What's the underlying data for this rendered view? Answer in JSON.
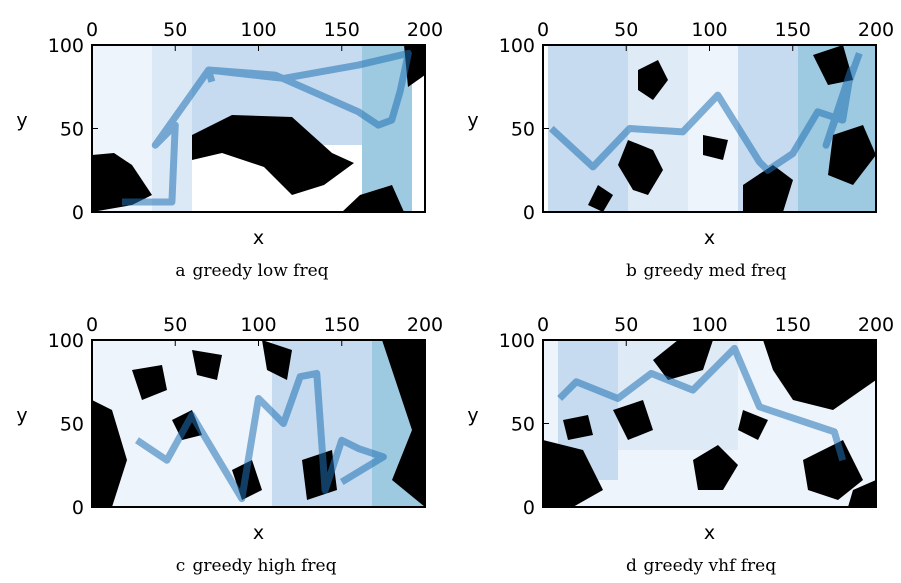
{
  "chart_data": [
    {
      "type": "line",
      "caption_letter": "a",
      "title": "greedy low freq",
      "xlabel": "x",
      "ylabel": "y",
      "xlim": [
        0,
        200
      ],
      "ylim": [
        0,
        100
      ],
      "xticks": [
        0,
        50,
        100,
        150,
        200
      ],
      "yticks": [
        0,
        50,
        100
      ],
      "series": [
        {
          "color": "#2171b5",
          "x": [
            18,
            48,
            50,
            38,
            70,
            110,
            160,
            172,
            180,
            185,
            190,
            160,
            115,
            70,
            72
          ],
          "y": [
            6,
            6,
            52,
            40,
            85,
            82,
            60,
            52,
            55,
            72,
            95,
            88,
            80,
            85,
            78
          ]
        }
      ]
    },
    {
      "type": "line",
      "caption_letter": "b",
      "title": "greedy med freq",
      "xlabel": "x",
      "ylabel": "y",
      "xlim": [
        0,
        200
      ],
      "ylim": [
        0,
        100
      ],
      "xticks": [
        0,
        50,
        100,
        150,
        200
      ],
      "yticks": [
        0,
        50,
        100
      ],
      "series": [
        {
          "color": "#2171b5",
          "x": [
            5,
            30,
            52,
            84,
            105,
            130,
            135,
            150,
            165,
            180,
            185,
            170,
            190
          ],
          "y": [
            50,
            27,
            50,
            48,
            70,
            30,
            25,
            35,
            60,
            55,
            85,
            40,
            95
          ]
        }
      ]
    },
    {
      "type": "line",
      "caption_letter": "c",
      "title": "greedy high freq",
      "xlabel": "x",
      "ylabel": "y",
      "xlim": [
        0,
        200
      ],
      "ylim": [
        0,
        100
      ],
      "xticks": [
        0,
        50,
        100,
        150,
        200
      ],
      "yticks": [
        0,
        50,
        100
      ],
      "series": [
        {
          "color": "#2171b5",
          "x": [
            27,
            45,
            60,
            90,
            100,
            115,
            125,
            135,
            140,
            150,
            160,
            175,
            150
          ],
          "y": [
            40,
            28,
            55,
            5,
            65,
            50,
            78,
            80,
            10,
            40,
            35,
            30,
            15
          ]
        }
      ]
    },
    {
      "type": "line",
      "caption_letter": "d",
      "title": "greedy vhf freq",
      "xlabel": "x",
      "ylabel": "y",
      "xlim": [
        0,
        200
      ],
      "ylim": [
        0,
        100
      ],
      "xticks": [
        0,
        50,
        100,
        150,
        200
      ],
      "yticks": [
        0,
        50,
        100
      ],
      "series": [
        {
          "color": "#2171b5",
          "x": [
            10,
            20,
            45,
            65,
            90,
            105,
            115,
            130,
            145,
            160,
            175,
            180
          ],
          "y": [
            65,
            75,
            65,
            80,
            70,
            85,
            95,
            60,
            55,
            50,
            45,
            28
          ]
        }
      ]
    }
  ]
}
